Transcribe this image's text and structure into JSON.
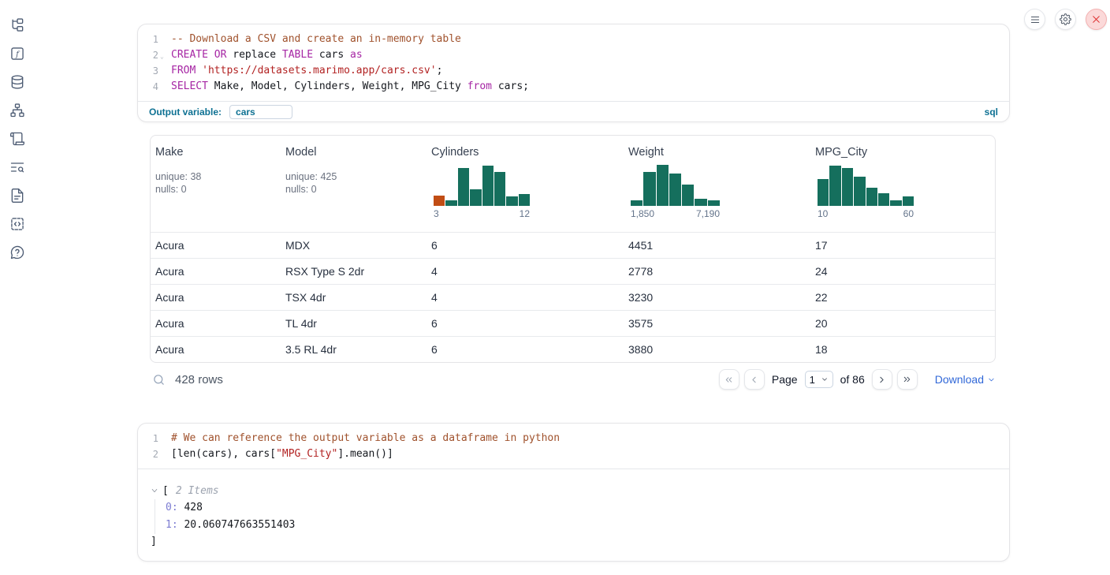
{
  "topbar": {
    "buttons": [
      "menu",
      "settings",
      "shutdown"
    ]
  },
  "sidebar": {
    "items": [
      "explorer-tree",
      "variables",
      "database",
      "dependency-graph",
      "logs",
      "search-list",
      "documentation",
      "snippets",
      "help"
    ]
  },
  "sql_cell": {
    "lines": [
      {
        "num": "1",
        "tokens": [
          {
            "text": "-- Download a CSV and create an in-memory table",
            "type": "comment"
          }
        ]
      },
      {
        "num": "2",
        "fold": true,
        "tokens": [
          {
            "text": "CREATE",
            "type": "keyword"
          },
          {
            "text": " ",
            "type": "plain"
          },
          {
            "text": "OR",
            "type": "keyword"
          },
          {
            "text": " replace ",
            "type": "plain"
          },
          {
            "text": "TABLE",
            "type": "keyword"
          },
          {
            "text": " cars ",
            "type": "plain"
          },
          {
            "text": "as",
            "type": "keyword"
          }
        ]
      },
      {
        "num": "3",
        "tokens": [
          {
            "text": "FROM",
            "type": "keyword"
          },
          {
            "text": " ",
            "type": "plain"
          },
          {
            "text": "'https://datasets.marimo.app/cars.csv'",
            "type": "string"
          },
          {
            "text": ";",
            "type": "plain"
          }
        ]
      },
      {
        "num": "4",
        "tokens": [
          {
            "text": "SELECT",
            "type": "keyword"
          },
          {
            "text": " Make, Model, Cylinders, Weight, MPG_City ",
            "type": "plain"
          },
          {
            "text": "from",
            "type": "keyword"
          },
          {
            "text": " cars;",
            "type": "plain"
          }
        ]
      }
    ],
    "output_variable_label": "Output variable:",
    "output_variable_value": "cars",
    "language_badge": "sql"
  },
  "table": {
    "columns": [
      {
        "name": "Make",
        "unique": "unique: 38",
        "nulls": "nulls: 0"
      },
      {
        "name": "Model",
        "unique": "unique: 425",
        "nulls": "nulls: 0"
      },
      {
        "name": "Cylinders",
        "histogram": {
          "type": "bar",
          "values": [
            0.24,
            0.13,
            0.88,
            0.38,
            0.93,
            0.79,
            0.21,
            0.27
          ],
          "colors": [
            "#c14d14",
            "#156f5d",
            "#156f5d",
            "#156f5d",
            "#156f5d",
            "#156f5d",
            "#156f5d",
            "#156f5d"
          ],
          "min": "3",
          "max": "12"
        }
      },
      {
        "name": "Weight",
        "histogram": {
          "type": "bar",
          "values": [
            0.12,
            0.78,
            0.95,
            0.74,
            0.5,
            0.17,
            0.12
          ],
          "colors": [
            "#156f5d",
            "#156f5d",
            "#156f5d",
            "#156f5d",
            "#156f5d",
            "#156f5d",
            "#156f5d"
          ],
          "min": "1,850",
          "max": "7,190"
        }
      },
      {
        "name": "MPG_City",
        "histogram": {
          "type": "bar",
          "values": [
            0.62,
            0.93,
            0.88,
            0.68,
            0.41,
            0.3,
            0.13,
            0.21
          ],
          "colors": [
            "#156f5d",
            "#156f5d",
            "#156f5d",
            "#156f5d",
            "#156f5d",
            "#156f5d",
            "#156f5d",
            "#156f5d"
          ],
          "min": "10",
          "max": "60"
        }
      }
    ],
    "rows": [
      [
        "Acura",
        "MDX",
        "6",
        "4451",
        "17"
      ],
      [
        "Acura",
        "RSX Type S 2dr",
        "4",
        "2778",
        "24"
      ],
      [
        "Acura",
        "TSX 4dr",
        "4",
        "3230",
        "22"
      ],
      [
        "Acura",
        "TL 4dr",
        "6",
        "3575",
        "20"
      ],
      [
        "Acura",
        "3.5 RL 4dr",
        "6",
        "3880",
        "18"
      ]
    ],
    "footer": {
      "row_count": "428 rows",
      "page_label": "Page",
      "page_value": "1",
      "total_label": "of 86",
      "download_label": "Download"
    }
  },
  "python_cell": {
    "lines": [
      {
        "num": "1",
        "tokens": [
          {
            "text": "# We can reference the output variable as a dataframe in python",
            "type": "comment"
          }
        ]
      },
      {
        "num": "2",
        "tokens": [
          {
            "text": "[len(cars), cars[",
            "type": "plain"
          },
          {
            "text": "\"MPG_City\"",
            "type": "string"
          },
          {
            "text": "].mean()]",
            "type": "plain"
          }
        ]
      }
    ]
  },
  "console_output": {
    "open_bracket": "[",
    "items_label": "2 Items",
    "entries": [
      {
        "key": "0:",
        "value": "428"
      },
      {
        "key": "1:",
        "value": "20.060747663551403"
      }
    ],
    "close_bracket": "]"
  },
  "colors": {
    "histogram_green": "#156f5d",
    "histogram_orange": "#c14d14",
    "accent_blue": "#0e7193",
    "link_blue": "#3168d8"
  }
}
